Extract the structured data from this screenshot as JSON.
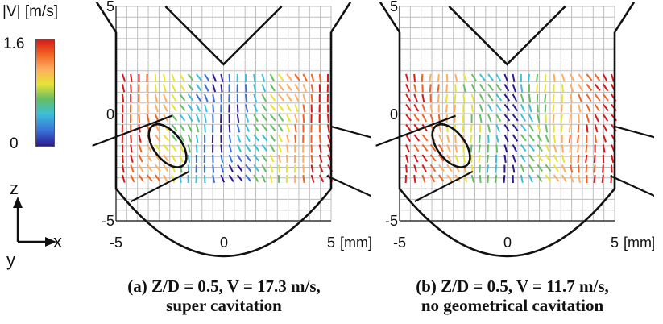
{
  "colorbar": {
    "title": "|V| [m/s]",
    "max_label": "1.6",
    "min_label": "0",
    "colors": [
      "#d7191c",
      "#f26522",
      "#fdae61",
      "#e8e336",
      "#66bd63",
      "#3cbfd8",
      "#3a6fd8",
      "#2b1a8f"
    ]
  },
  "axes_indicator": {
    "z": "z",
    "x": "x",
    "y": "y"
  },
  "panels": [
    {
      "id": "a",
      "caption_line1": "(a)  Z/D = 0.5, V = 17.3 m/s,",
      "caption_line2": "super cavitation",
      "x_ticks": [
        "-5",
        "0",
        "5"
      ],
      "y_ticks": [
        "5",
        "0",
        "-5"
      ],
      "unit": "[mm]"
    },
    {
      "id": "b",
      "caption_line1": "(b)  Z/D = 0.5, V = 11.7 m/s,",
      "caption_line2": "no geometrical cavitation",
      "x_ticks": [
        "-5",
        "0",
        "5"
      ],
      "y_ticks": [
        "5",
        "0",
        "-5"
      ],
      "unit": "[mm]"
    }
  ]
}
